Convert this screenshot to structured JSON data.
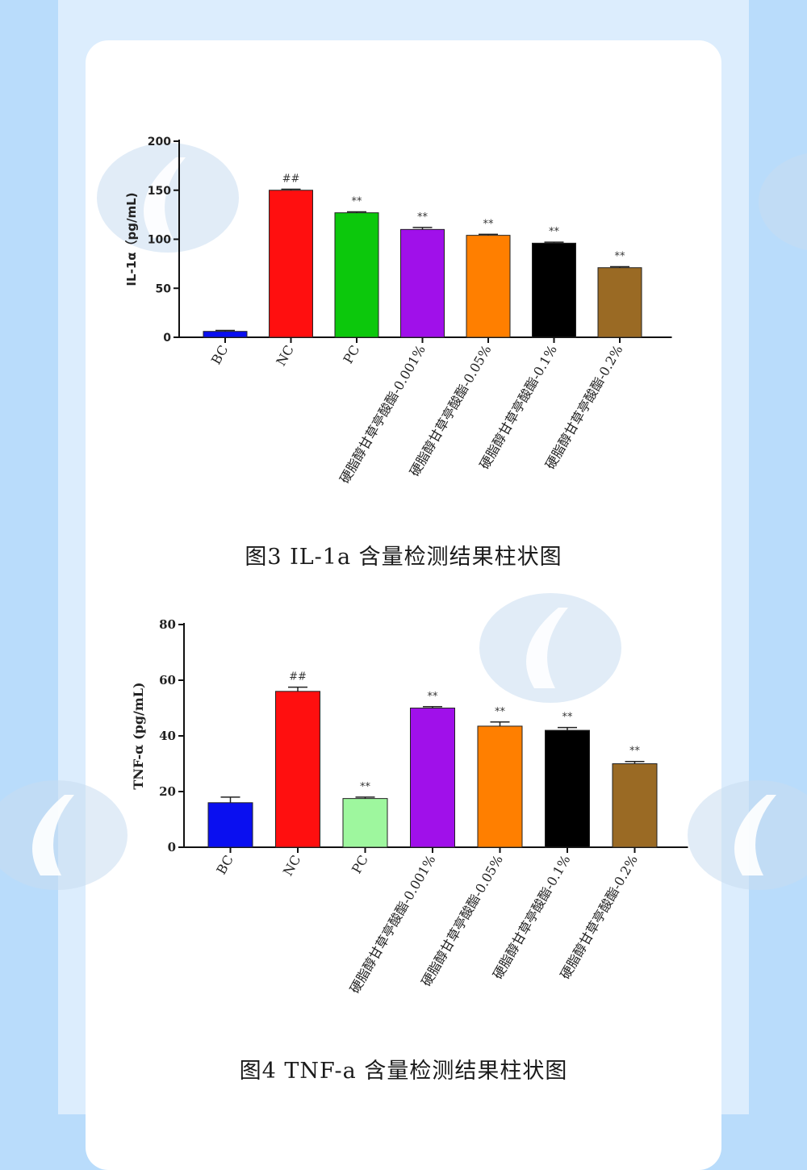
{
  "charts": [
    {
      "caption": "图3 IL-1a 含量检测结果柱状图",
      "ylabel": "IL-1α（pg/mL)",
      "yticks": [
        "0",
        "50",
        "100",
        "150",
        "200"
      ],
      "ylim": [
        0,
        200
      ],
      "categories": [
        "BC",
        "NC",
        "PC",
        "硬脂醇甘草亭酸酯-0.001%",
        "硬脂醇甘草亭酸酯-0.05%",
        "硬脂醇甘草亭酸酯-0.1%",
        "硬脂醇甘草亭酸酯-0.2%"
      ],
      "values": [
        6,
        150,
        127,
        110,
        104,
        96,
        71
      ],
      "errors": [
        1,
        1,
        1,
        2,
        1,
        1,
        1
      ],
      "annotations": [
        "",
        "##",
        "**",
        "**",
        "**",
        "**",
        "**"
      ],
      "colors": [
        "#0a0ff0",
        "#ff0f0f",
        "#0cc80c",
        "#a010ea",
        "#ff7f00",
        "#000000",
        "#9a6a24"
      ]
    },
    {
      "caption": "图4 TNF-a 含量检测结果柱状图",
      "ylabel": "TNF-α (pg/mL)",
      "yticks": [
        "0",
        "20",
        "40",
        "60",
        "80"
      ],
      "ylim": [
        0,
        80
      ],
      "categories": [
        "BC",
        "NC",
        "PC",
        "硬脂醇甘草亭酸酯-0.001%",
        "硬脂醇甘草亭酸酯-0.05%",
        "硬脂醇甘草亭酸酯-0.1%",
        "硬脂醇甘草亭酸酯-0.2%"
      ],
      "values": [
        16,
        56,
        17.5,
        50,
        43.5,
        42,
        30
      ],
      "errors": [
        2,
        1.5,
        0.5,
        0.5,
        1.5,
        1,
        0.8
      ],
      "annotations": [
        "",
        "##",
        "**",
        "**",
        "**",
        "**",
        "**"
      ],
      "colors": [
        "#0a0ff0",
        "#ff0f0f",
        "#9ef79e",
        "#a010ea",
        "#ff7f00",
        "#000000",
        "#9a6a24"
      ]
    }
  ],
  "chart_data": [
    {
      "type": "bar",
      "title": "图3 IL-1a 含量检测结果柱状图",
      "ylabel": "IL-1α（pg/mL)",
      "ylim": [
        0,
        200
      ],
      "categories": [
        "BC",
        "NC",
        "PC",
        "硬脂醇甘草亭酸酯-0.001%",
        "硬脂醇甘草亭酸酯-0.05%",
        "硬脂醇甘草亭酸酯-0.1%",
        "硬脂醇甘草亭酸酯-0.2%"
      ],
      "values": [
        6,
        150,
        127,
        110,
        104,
        96,
        71
      ]
    },
    {
      "type": "bar",
      "title": "图4 TNF-a 含量检测结果柱状图",
      "ylabel": "TNF-α (pg/mL)",
      "ylim": [
        0,
        80
      ],
      "categories": [
        "BC",
        "NC",
        "PC",
        "硬脂醇甘草亭酸酯-0.001%",
        "硬脂醇甘草亭酸酯-0.05%",
        "硬脂醇甘草亭酸酯-0.1%",
        "硬脂醇甘草亭酸酯-0.2%"
      ],
      "values": [
        16,
        56,
        17.5,
        50,
        43.5,
        42,
        30
      ]
    }
  ]
}
